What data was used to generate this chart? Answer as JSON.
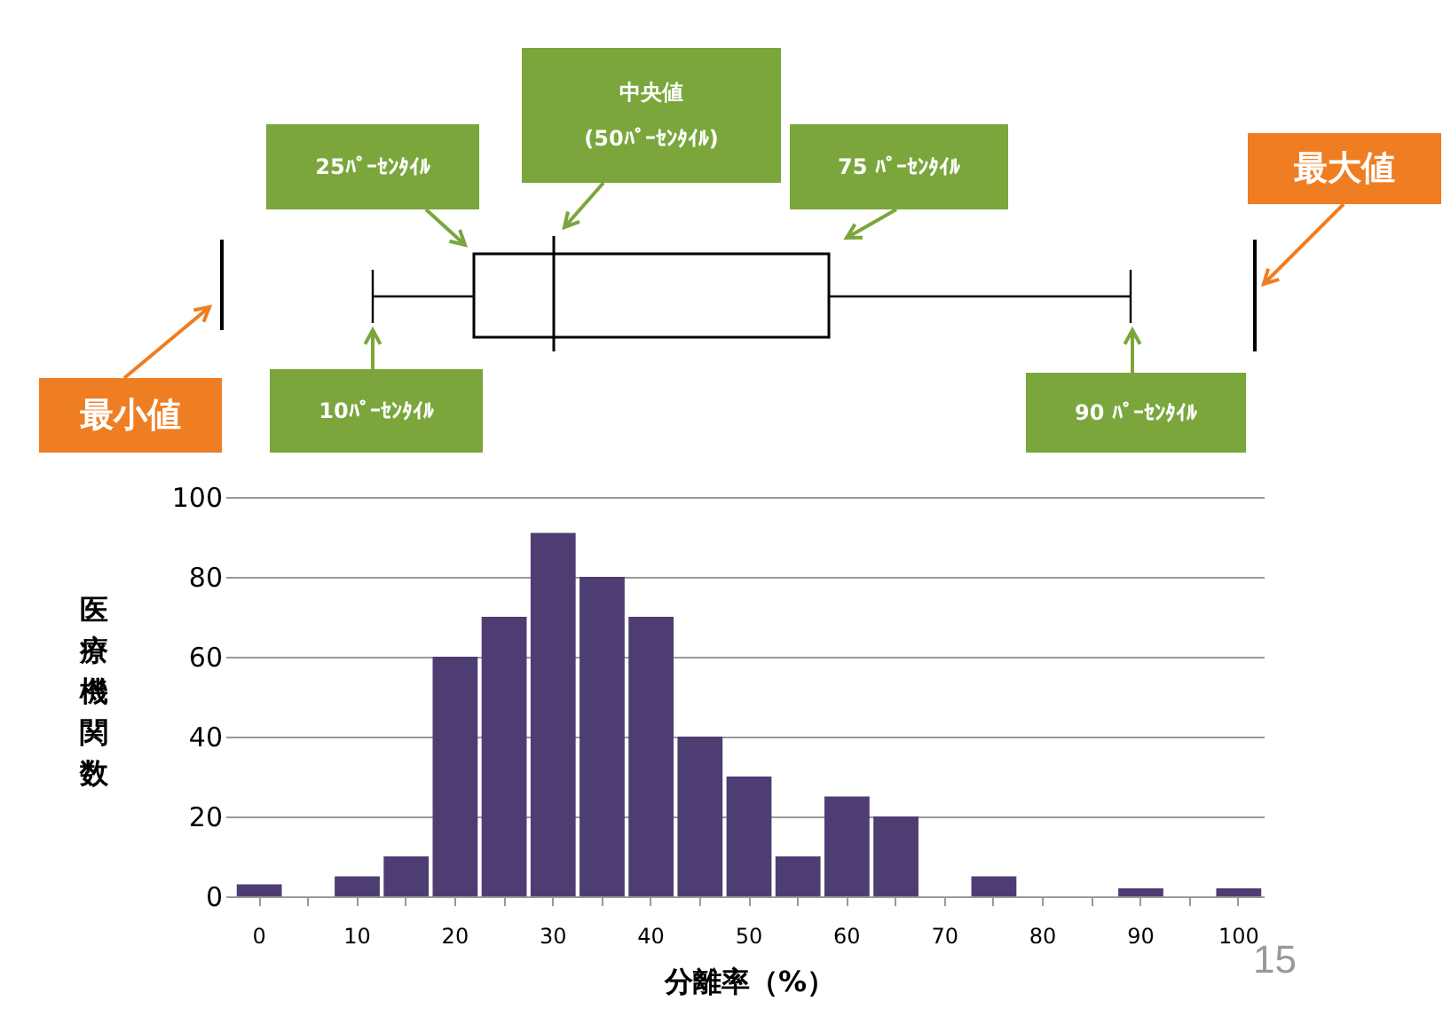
{
  "chart_data": [
    {
      "type": "other",
      "annotations": [
        "最小値",
        "10ﾊﾟｰｾﾝﾀｲﾙ",
        "25ﾊﾟｰｾﾝﾀｲﾙ",
        "中央値\n(50ﾊﾟｰｾﾝﾀｲﾙ)",
        "75 ﾊﾟｰｾﾝﾀｲﾙ",
        "90 ﾊﾟｰｾﾝﾀｲﾙ",
        "最大値"
      ]
    },
    {
      "type": "bar",
      "xlabel": "分離率（%）",
      "ylabel": "医療機関数",
      "categories": [
        "0",
        null,
        "10",
        null,
        "20",
        null,
        "30",
        null,
        "40",
        null,
        "50",
        null,
        "60",
        null,
        "70",
        null,
        "80",
        null,
        "90",
        null,
        "100"
      ],
      "values": [
        3,
        0,
        5,
        10,
        60,
        70,
        91,
        80,
        70,
        40,
        30,
        10,
        25,
        20,
        0,
        5,
        0,
        0,
        2,
        0,
        2
      ],
      "color": "#4e3d72",
      "ylim": [
        0,
        100
      ],
      "yticks": [
        0,
        20,
        40,
        60,
        80,
        100
      ],
      "grid": "y",
      "annotations": [
        "15"
      ]
    }
  ]
}
